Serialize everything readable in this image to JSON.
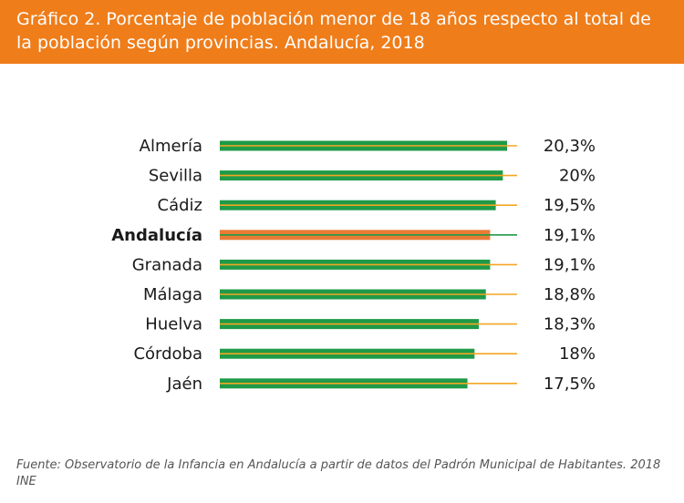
{
  "header": {
    "title": "Gráfico 2. Porcentaje de población menor de 18 años respecto al total de la población según provincias. Andalucía, 2018"
  },
  "footer": {
    "source": "Fuente: Observatorio de la Infancia en Andalucía a partir de datos del Padrón Municipal de Habitantes. 2018 INE"
  },
  "colors": {
    "header": "#ef7d1a",
    "bar": "#1f9a48",
    "bar_highlight": "#e87c35",
    "stem": "#f4a623",
    "stem_highlight": "#1f9a48",
    "text": "#1a1a1a"
  },
  "chart_data": {
    "type": "bar",
    "orientation": "horizontal",
    "categories": [
      "Almería",
      "Sevilla",
      "Cádiz",
      "Andalucía",
      "Granada",
      "Málaga",
      "Huelva",
      "Córdoba",
      "Jaén"
    ],
    "values": [
      20.3,
      20.0,
      19.5,
      19.1,
      19.1,
      18.8,
      18.3,
      18.0,
      17.5
    ],
    "value_labels": [
      "20,3%",
      "20%",
      "19,5%",
      "19,1%",
      "19,1%",
      "18,8%",
      "18,3%",
      "18%",
      "17,5%"
    ],
    "highlight": "Andalucía",
    "title": "",
    "xlabel": "",
    "ylabel": "",
    "xlim": [
      0,
      20.3
    ],
    "grid": false,
    "legend": "none"
  }
}
